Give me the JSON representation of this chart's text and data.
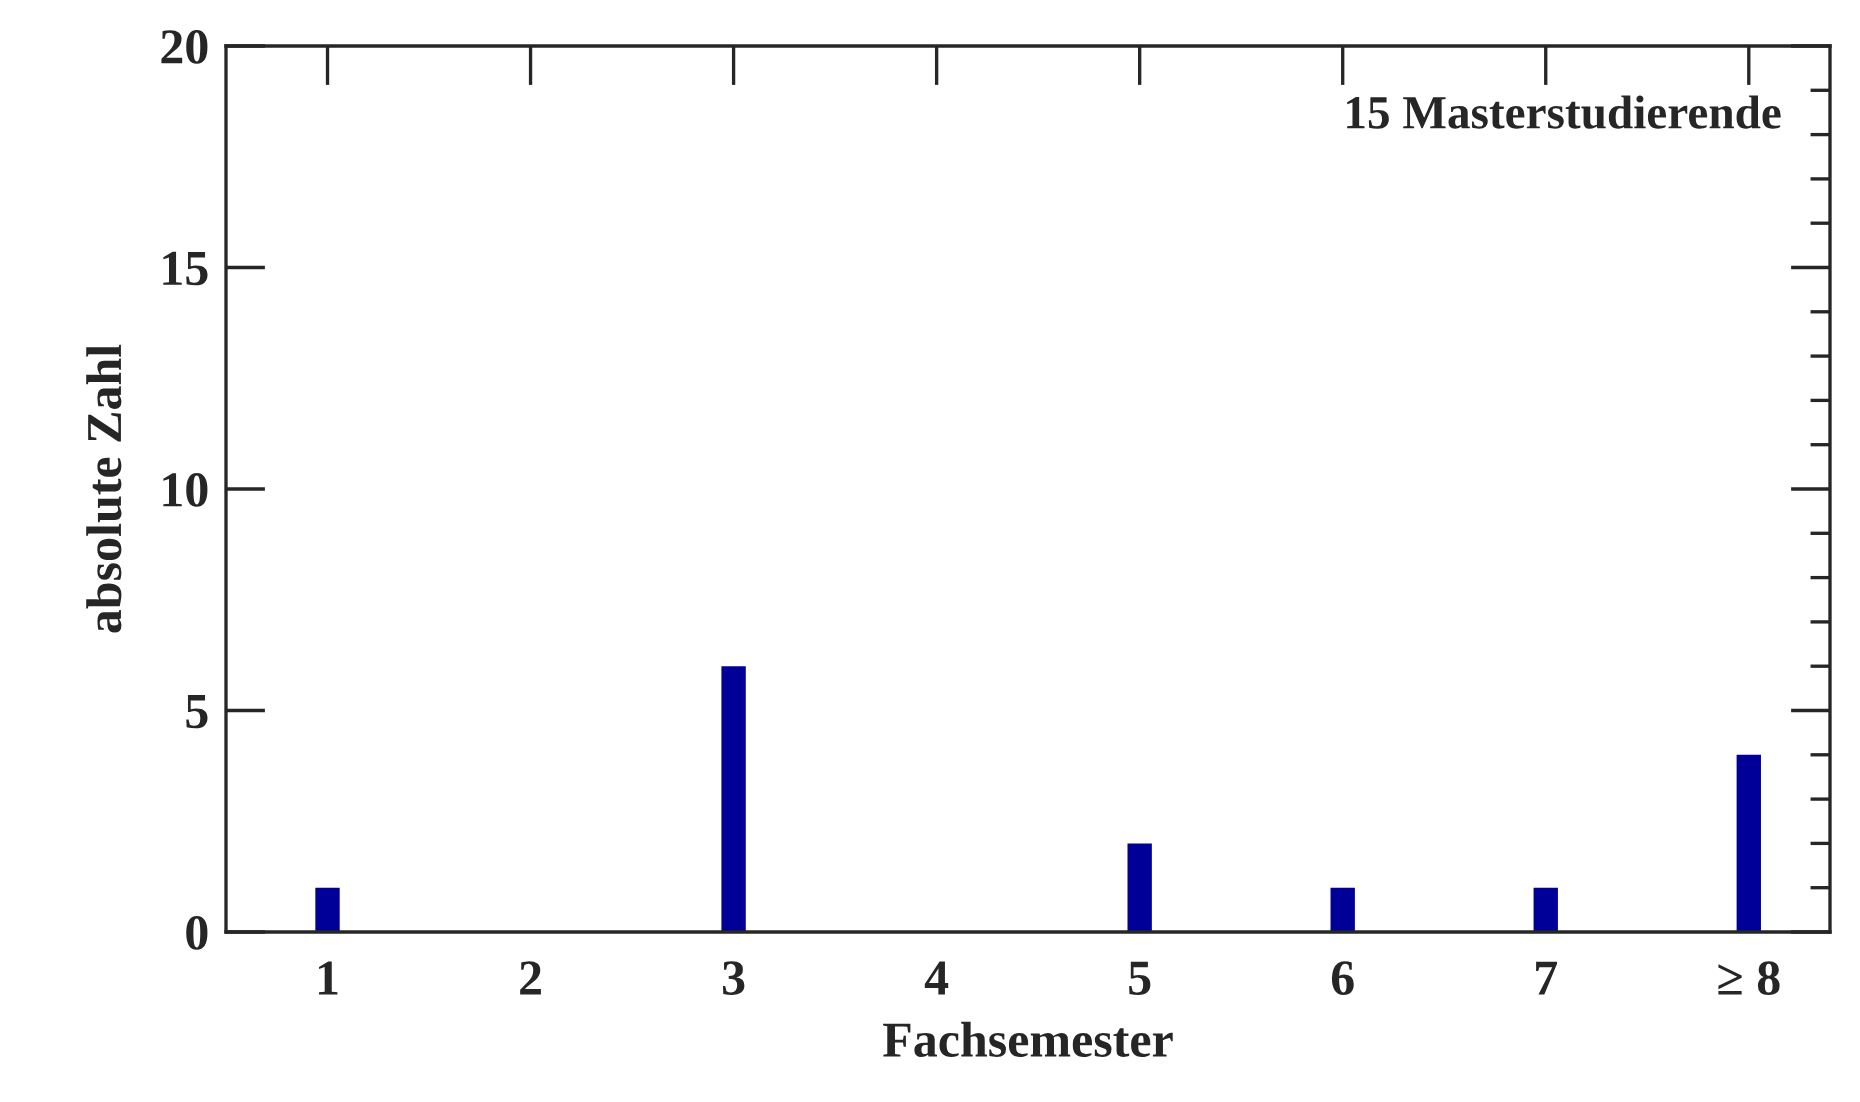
{
  "chart_data": {
    "type": "bar",
    "xlabel": "Fachsemester",
    "ylabel": "absolute Zahl",
    "annotations": [
      "15 Masterstudierende"
    ],
    "categories": [
      "1",
      "2",
      "3",
      "4",
      "5",
      "6",
      "7",
      "≥ 8"
    ],
    "values": [
      1,
      0,
      6,
      0,
      2,
      1,
      1,
      4
    ],
    "color": "#000099",
    "ylim": [
      0,
      20
    ],
    "yticks": [
      0,
      {
        "value": 1,
        "label": null
      },
      {
        "value": 2,
        "label": null
      },
      {
        "value": 3,
        "label": null
      },
      {
        "value": 4,
        "label": null
      },
      5,
      {
        "value": 6,
        "label": null
      },
      {
        "value": 7,
        "label": null
      },
      {
        "value": 8,
        "label": null
      },
      {
        "value": 9,
        "label": null
      },
      10,
      {
        "value": 11,
        "label": null
      },
      {
        "value": 12,
        "label": null
      },
      {
        "value": 13,
        "label": null
      },
      {
        "value": 14,
        "label": null
      },
      15,
      {
        "value": 16,
        "label": null
      },
      {
        "value": 17,
        "label": null
      },
      {
        "value": 18,
        "label": null
      },
      {
        "value": 19,
        "label": null
      },
      20
    ],
    "grid": false,
    "legend": false
  }
}
